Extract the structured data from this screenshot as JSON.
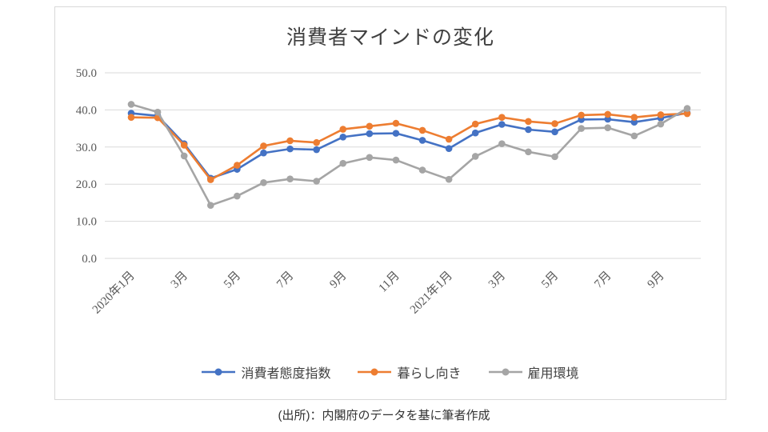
{
  "page": {
    "caption": "(出所)：内閣府のデータを基に筆者作成"
  },
  "chart_data": {
    "type": "line",
    "title": "消費者マインドの変化",
    "xlabel": "",
    "ylabel": "",
    "ylim": [
      0,
      50
    ],
    "y_tick_step": 10,
    "y_tick_decimals": 1,
    "grid": "horizontal",
    "legend_position": "bottom",
    "x_labels": [
      "2020年1月",
      "2020年2月",
      "2020年3月",
      "2020年4月",
      "2020年5月",
      "2020年6月",
      "2020年7月",
      "2020年8月",
      "2020年9月",
      "2020年10月",
      "2020年11月",
      "2020年12月",
      "2021年1月",
      "2021年2月",
      "2021年3月",
      "2021年4月",
      "2021年5月",
      "2021年6月",
      "2021年7月",
      "2021年8月",
      "2021年9月",
      "2021年10月"
    ],
    "x_tick_indices": [
      0,
      2,
      4,
      6,
      8,
      10,
      12,
      14,
      16,
      18,
      20
    ],
    "x_tick_labels": [
      "2020年1月",
      "3月",
      "5月",
      "7月",
      "9月",
      "11月",
      "2021年1月",
      "3月",
      "5月",
      "7月",
      "9月"
    ],
    "series": [
      {
        "name": "消費者態度指数",
        "color": "#4472c4",
        "values": [
          39.1,
          38.4,
          30.9,
          21.6,
          24.0,
          28.4,
          29.5,
          29.3,
          32.7,
          33.6,
          33.7,
          31.8,
          29.6,
          33.8,
          36.1,
          34.7,
          34.1,
          37.4,
          37.5,
          36.7,
          37.8,
          39.2
        ]
      },
      {
        "name": "暮らし向き",
        "color": "#ed7d31",
        "values": [
          38.0,
          37.9,
          30.5,
          21.2,
          25.1,
          30.3,
          31.7,
          31.2,
          34.8,
          35.6,
          36.4,
          34.5,
          32.1,
          36.2,
          38.0,
          36.9,
          36.3,
          38.6,
          38.8,
          38.0,
          38.7,
          39.0
        ]
      },
      {
        "name": "雇用環境",
        "color": "#a5a5a5",
        "values": [
          41.5,
          39.4,
          27.6,
          14.3,
          16.8,
          20.4,
          21.4,
          20.8,
          25.6,
          27.2,
          26.5,
          23.8,
          21.3,
          27.5,
          30.9,
          28.7,
          27.4,
          35.0,
          35.2,
          33.0,
          36.2,
          40.4
        ]
      }
    ]
  }
}
